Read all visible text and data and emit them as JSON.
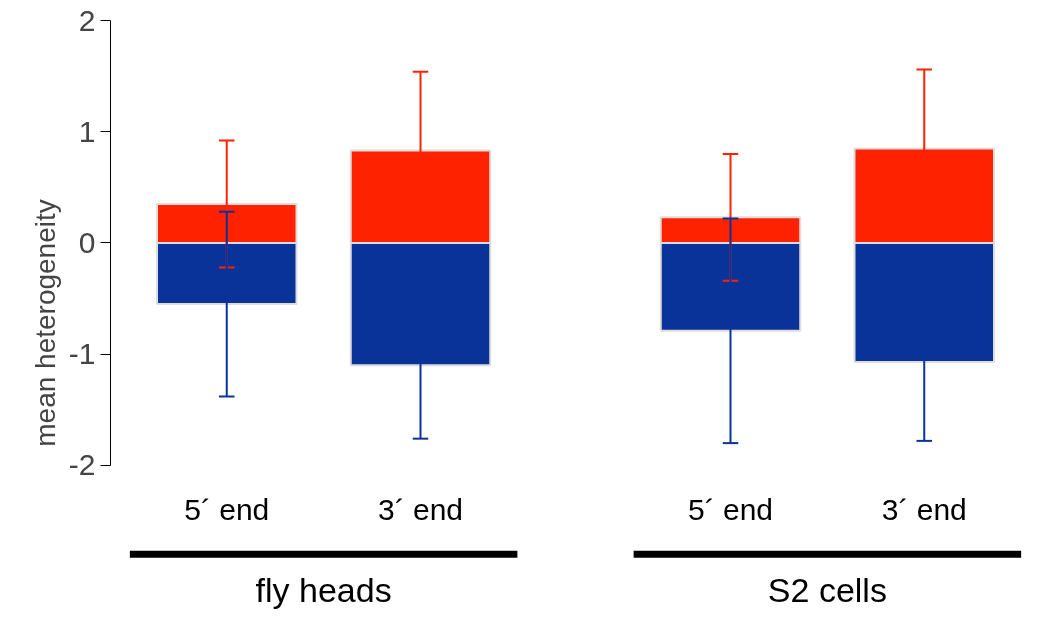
{
  "chart_data": {
    "type": "bar",
    "ylabel": "mean heterogeneity",
    "categories": [
      "5´ end",
      "3´ end",
      "5´ end",
      "3´ end"
    ],
    "series": [
      {
        "color": "#ff2200",
        "values": [
          0.35,
          0.83,
          0.23,
          0.85
        ],
        "errors": [
          0.57,
          0.71,
          0.57,
          0.71
        ]
      },
      {
        "color": "#0a3399",
        "values": [
          -0.55,
          -1.1,
          -0.79,
          -1.07
        ],
        "errors": [
          0.83,
          0.66,
          1.01,
          0.71
        ]
      }
    ],
    "ylim": [
      -2,
      2
    ],
    "yticks": [
      -2,
      -1,
      0,
      1,
      2
    ],
    "grid": false,
    "stacked": true,
    "annotations": [
      "fly heads",
      "S2 cells"
    ]
  }
}
